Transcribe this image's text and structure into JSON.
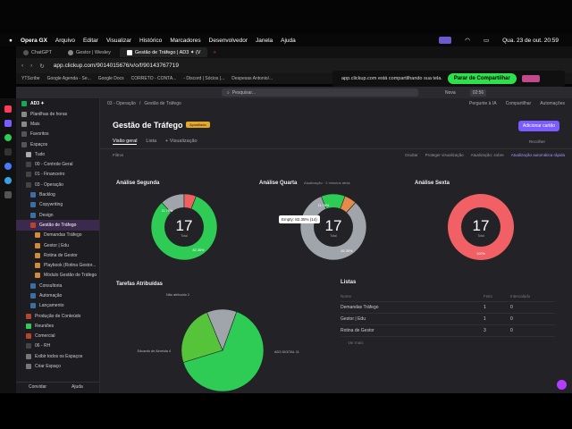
{
  "menubar": {
    "items": [
      "Opera GX",
      "Arquivo",
      "Editar",
      "Visualizar",
      "Histórico",
      "Marcadores",
      "Desenvolvedor",
      "Janela",
      "Ajuda"
    ],
    "datetime": "Qua. 23 de out. 20:59"
  },
  "tabs": [
    {
      "label": "ChatGPT"
    },
    {
      "label": "Gestor | Wesley"
    },
    {
      "label": "Gestão de Tráfego | AD3 ✦ (V"
    }
  ],
  "address": {
    "url": "app.clickup.com/9014015676/v/o/f/90143767719"
  },
  "bookmarks": [
    "YTScribe",
    "Google Agenda - Se...",
    "Google Docs",
    "CORRETO - CONTA...",
    "- Discord | Sócios |...",
    "Despesas Antonio/..."
  ],
  "share_bar": {
    "text": "app.clickup.com está compartilhando sua tela.",
    "button": "Parar de Compartilhar"
  },
  "clickup_header": {
    "search": "Pesquisar...",
    "new": "Nova",
    "time": "02:56"
  },
  "sidebar": {
    "workspace": "AD3 ✦",
    "items": [
      {
        "label": "Planilhas de horas"
      },
      {
        "label": "Mais"
      },
      {
        "label": "Favoritos"
      },
      {
        "label": "Espaços"
      },
      {
        "label": "Tudo"
      },
      {
        "label": "00 - Controle Geral"
      },
      {
        "label": "01 - Financeiro"
      },
      {
        "label": "03 - Operação"
      },
      {
        "label": "Backlog"
      },
      {
        "label": "Copywriting"
      },
      {
        "label": "Design"
      },
      {
        "label": "Gestão de Tráfego"
      },
      {
        "label": "Demandas Tráfego"
      },
      {
        "label": "Gestor | Edu"
      },
      {
        "label": "Rotina de Gestor"
      },
      {
        "label": "Playbook (Rotina Gestor..."
      },
      {
        "label": "Módulo Gestão de Tráfego"
      },
      {
        "label": "Consultoria"
      },
      {
        "label": "Automação"
      },
      {
        "label": "Lançamento"
      },
      {
        "label": "Produção de Conteúdo"
      },
      {
        "label": "Reuniões"
      },
      {
        "label": "Comercial"
      },
      {
        "label": "06 - RH"
      },
      {
        "label": "Exibir todos os Espaços"
      },
      {
        "label": "Criar Espaço"
      }
    ],
    "footer_invite": "Convidar",
    "footer_help": "Ajuda"
  },
  "main": {
    "breadcrumb": [
      "03 - Operação",
      "Gestão de Tráfego"
    ],
    "ask_ai": "Pergunte à IA",
    "share": "Compartilhar",
    "automations": "Automações",
    "title": "Gestão de Tráfego",
    "badge": "Apostilado",
    "add_card": "Adicionar cartão",
    "views": [
      "Visão geral",
      "Lista",
      "+ Visualização"
    ],
    "filters": "Filtros",
    "toolbar_right": [
      "Ocultar",
      "Proteger visualização",
      "Atualização: sobre",
      "Atualização automática rápida"
    ],
    "rec_label": "Recolher"
  },
  "charts": {
    "segunda": {
      "title": "Análise Segunda",
      "center": "17",
      "sub": "Total",
      "labels": [
        "11.76%",
        "82.35%"
      ]
    },
    "quarta": {
      "title": "Análise Quarta",
      "meta": "Atualização · 2 minutos atrás",
      "center": "17",
      "sub": "Total",
      "labels": [
        "11.76%",
        "82.35%"
      ]
    },
    "sexta": {
      "title": "Análise Sexta",
      "center": "17",
      "sub": "Total",
      "labels": [
        "100%"
      ]
    },
    "tarefas": {
      "title": "Tarefas Atribuídas",
      "labels": [
        "Não atribuído 2",
        "Eduardo de Almeida 4",
        "AD3 DIGITAL 11"
      ]
    }
  },
  "tooltip": {
    "text": "Empty: 82.35% (14)"
  },
  "lists": {
    "title": "Listas",
    "headers": [
      "Nome",
      "Feito",
      "Intercalado"
    ],
    "rows": [
      {
        "name": "Demandas Tráfego",
        "a": "1",
        "b": "0"
      },
      {
        "name": "Gestor | Edu",
        "a": "1",
        "b": "0"
      },
      {
        "name": "Rotina de Gestor",
        "a": "3",
        "b": "0"
      }
    ],
    "more": "Ver mais"
  },
  "chart_data": [
    {
      "type": "pie",
      "title": "Análise Segunda",
      "series": [
        {
          "values": [
            82.35,
            11.76,
            5.89
          ]
        }
      ],
      "labels": [
        "82.35%",
        "11.76%",
        ""
      ],
      "colors": [
        "#2ecc55",
        "#a0a4ab",
        "#f06060"
      ]
    },
    {
      "type": "pie",
      "title": "Análise Quarta",
      "series": [
        {
          "values": [
            82.35,
            11.76,
            5.89
          ]
        }
      ],
      "labels": [
        "82.35%",
        "11.76%",
        ""
      ],
      "colors": [
        "#a0a4ab",
        "#2ecc55",
        "#e88a4a"
      ]
    },
    {
      "type": "pie",
      "title": "Análise Sexta",
      "series": [
        {
          "values": [
            100
          ]
        }
      ],
      "labels": [
        "100%"
      ],
      "colors": [
        "#f06064"
      ]
    },
    {
      "type": "pie",
      "title": "Tarefas Atribuídas",
      "series": [
        {
          "values": [
            11,
            4,
            2
          ]
        }
      ],
      "labels": [
        "AD3 DIGITAL 11",
        "Eduardo de Almeida 4",
        "Não atribuído 2"
      ],
      "colors": [
        "#2ecc55",
        "#56c43a",
        "#a0a4ab"
      ]
    }
  ]
}
